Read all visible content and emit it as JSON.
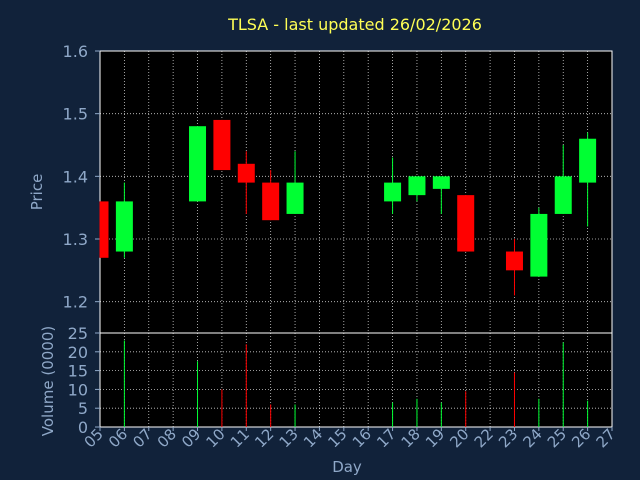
{
  "chart_data": [
    {
      "type": "candlestick",
      "title": "TLSA - last updated 26/02/2026",
      "ylabel": "Price",
      "ylim": [
        1.15,
        1.6
      ],
      "yticks": [
        "1.2",
        "1.3",
        "1.4",
        "1.5",
        "1.6"
      ],
      "grid": true,
      "x_categories": [
        "05",
        "06",
        "07",
        "08",
        "09",
        "10",
        "11",
        "12",
        "13",
        "14",
        "15",
        "16",
        "17",
        "18",
        "19",
        "20",
        "22",
        "23",
        "24",
        "25",
        "26",
        "27"
      ],
      "candles": [
        {
          "day": "05",
          "open": 1.36,
          "close": 1.27,
          "high": 1.36,
          "low": 1.27
        },
        {
          "day": "06",
          "open": 1.28,
          "close": 1.36,
          "high": 1.39,
          "low": 1.27
        },
        {
          "day": "09",
          "open": 1.36,
          "close": 1.48,
          "high": 1.48,
          "low": 1.36
        },
        {
          "day": "10",
          "open": 1.49,
          "close": 1.41,
          "high": 1.49,
          "low": 1.41
        },
        {
          "day": "11",
          "open": 1.42,
          "close": 1.39,
          "high": 1.44,
          "low": 1.34
        },
        {
          "day": "12",
          "open": 1.39,
          "close": 1.33,
          "high": 1.41,
          "low": 1.33
        },
        {
          "day": "13",
          "open": 1.34,
          "close": 1.39,
          "high": 1.44,
          "low": 1.34
        },
        {
          "day": "17",
          "open": 1.36,
          "close": 1.39,
          "high": 1.43,
          "low": 1.34
        },
        {
          "day": "18",
          "open": 1.37,
          "close": 1.4,
          "high": 1.4,
          "low": 1.36
        },
        {
          "day": "19",
          "open": 1.38,
          "close": 1.4,
          "high": 1.4,
          "low": 1.34
        },
        {
          "day": "20",
          "open": 1.37,
          "close": 1.28,
          "high": 1.37,
          "low": 1.28
        },
        {
          "day": "23",
          "open": 1.28,
          "close": 1.25,
          "high": 1.3,
          "low": 1.21
        },
        {
          "day": "24",
          "open": 1.24,
          "close": 1.34,
          "high": 1.35,
          "low": 1.24
        },
        {
          "day": "25",
          "open": 1.34,
          "close": 1.4,
          "high": 1.45,
          "low": 1.34
        },
        {
          "day": "26",
          "open": 1.39,
          "close": 1.46,
          "high": 1.47,
          "low": 1.32
        }
      ],
      "up_color": "#00ff33",
      "down_color": "#ff0000"
    },
    {
      "type": "bar",
      "ylabel": "Volume (0000)",
      "ylim": [
        0,
        25
      ],
      "yticks": [
        "0",
        "5",
        "10",
        "15",
        "20",
        "25"
      ],
      "xlabel": "Day",
      "grid": true,
      "values": [
        {
          "day": "06",
          "volume": 23,
          "dir": "up"
        },
        {
          "day": "09",
          "volume": 17.5,
          "dir": "up"
        },
        {
          "day": "10",
          "volume": 10,
          "dir": "down"
        },
        {
          "day": "11",
          "volume": 22,
          "dir": "down"
        },
        {
          "day": "12",
          "volume": 6,
          "dir": "down"
        },
        {
          "day": "13",
          "volume": 6,
          "dir": "up"
        },
        {
          "day": "17",
          "volume": 6.5,
          "dir": "up"
        },
        {
          "day": "18",
          "volume": 7.5,
          "dir": "up"
        },
        {
          "day": "19",
          "volume": 6.5,
          "dir": "up"
        },
        {
          "day": "20",
          "volume": 9.5,
          "dir": "down"
        },
        {
          "day": "23",
          "volume": 14.5,
          "dir": "down"
        },
        {
          "day": "24",
          "volume": 7.5,
          "dir": "up"
        },
        {
          "day": "25",
          "volume": 22.5,
          "dir": "up"
        },
        {
          "day": "26",
          "volume": 7,
          "dir": "up"
        }
      ]
    }
  ]
}
